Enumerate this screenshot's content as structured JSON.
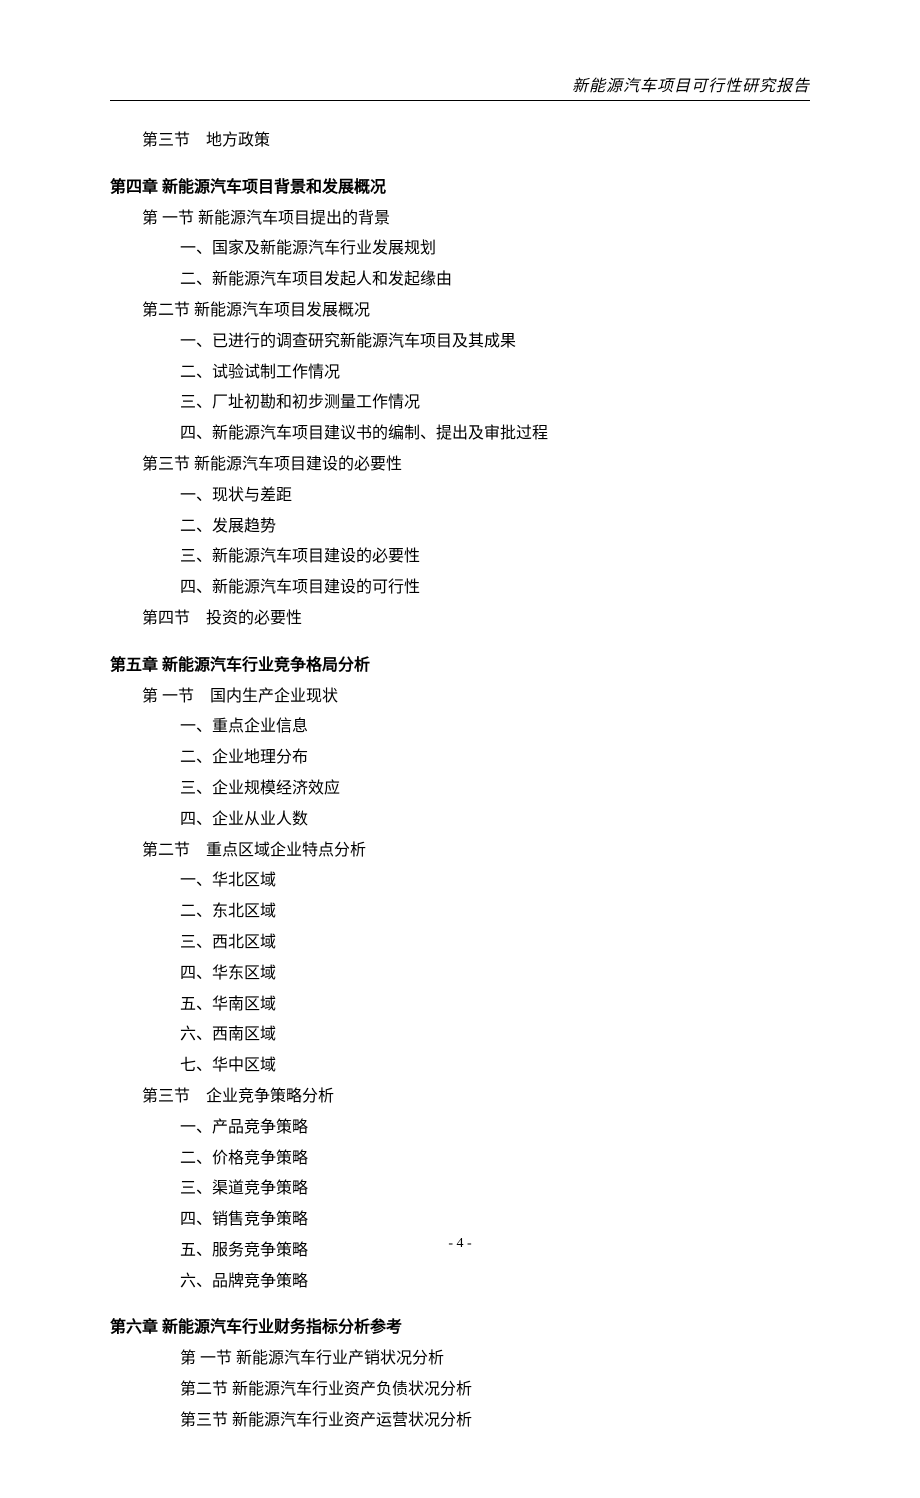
{
  "header": {
    "title": "新能源汽车项目可行性研究报告"
  },
  "footer": {
    "pageNumber": "- 4 -"
  },
  "typography": {
    "body_font": "SimSun",
    "body_size_pt": 12,
    "line_height": 1.8,
    "header_italic": true,
    "chapter_bold": true,
    "text_color": "#000000",
    "background_color": "#ffffff"
  },
  "lines": [
    {
      "text": "第三节　地方政策",
      "indent": 1,
      "type": "section"
    },
    {
      "text": "第四章  新能源汽车项目背景和发展概况",
      "indent": 0,
      "type": "chapter"
    },
    {
      "text": "第 一节  新能源汽车项目提出的背景",
      "indent": 1,
      "type": "section"
    },
    {
      "text": "一、国家及新能源汽车行业发展规划",
      "indent": 2,
      "type": "item"
    },
    {
      "text": "二、新能源汽车项目发起人和发起缘由",
      "indent": 2,
      "type": "item"
    },
    {
      "text": "第二节  新能源汽车项目发展概况",
      "indent": 1,
      "type": "section"
    },
    {
      "text": "一、已进行的调查研究新能源汽车项目及其成果",
      "indent": 2,
      "type": "item"
    },
    {
      "text": "二、试验试制工作情况",
      "indent": 2,
      "type": "item"
    },
    {
      "text": "三、厂址初勘和初步测量工作情况",
      "indent": 2,
      "type": "item"
    },
    {
      "text": "四、新能源汽车项目建议书的编制、提出及审批过程",
      "indent": 2,
      "type": "item"
    },
    {
      "text": "第三节  新能源汽车项目建设的必要性",
      "indent": 1,
      "type": "section"
    },
    {
      "text": "一、现状与差距",
      "indent": 2,
      "type": "item"
    },
    {
      "text": "二、发展趋势",
      "indent": 2,
      "type": "item"
    },
    {
      "text": "三、新能源汽车项目建设的必要性",
      "indent": 2,
      "type": "item"
    },
    {
      "text": "四、新能源汽车项目建设的可行性",
      "indent": 2,
      "type": "item"
    },
    {
      "text": "第四节　投资的必要性",
      "indent": 1,
      "type": "section"
    },
    {
      "text": "第五章  新能源汽车行业竞争格局分析",
      "indent": 0,
      "type": "chapter"
    },
    {
      "text": "第 一节　国内生产企业现状",
      "indent": 1,
      "type": "section"
    },
    {
      "text": "一、重点企业信息",
      "indent": 2,
      "type": "item"
    },
    {
      "text": "二、企业地理分布",
      "indent": 2,
      "type": "item"
    },
    {
      "text": "三、企业规模经济效应",
      "indent": 2,
      "type": "item"
    },
    {
      "text": "四、企业从业人数",
      "indent": 2,
      "type": "item"
    },
    {
      "text": "第二节　重点区域企业特点分析",
      "indent": 1,
      "type": "section"
    },
    {
      "text": "一、华北区域",
      "indent": 2,
      "type": "item"
    },
    {
      "text": "二、东北区域",
      "indent": 2,
      "type": "item"
    },
    {
      "text": "三、西北区域",
      "indent": 2,
      "type": "item"
    },
    {
      "text": "四、华东区域",
      "indent": 2,
      "type": "item"
    },
    {
      "text": "五、华南区域",
      "indent": 2,
      "type": "item"
    },
    {
      "text": "六、西南区域",
      "indent": 2,
      "type": "item"
    },
    {
      "text": "七、华中区域",
      "indent": 2,
      "type": "item"
    },
    {
      "text": "第三节　企业竞争策略分析",
      "indent": 1,
      "type": "section"
    },
    {
      "text": "一、产品竞争策略",
      "indent": 2,
      "type": "item"
    },
    {
      "text": "二、价格竞争策略",
      "indent": 2,
      "type": "item"
    },
    {
      "text": "三、渠道竞争策略",
      "indent": 2,
      "type": "item"
    },
    {
      "text": "四、销售竞争策略",
      "indent": 2,
      "type": "item"
    },
    {
      "text": "五、服务竞争策略",
      "indent": 2,
      "type": "item"
    },
    {
      "text": "六、品牌竞争策略",
      "indent": 2,
      "type": "item"
    },
    {
      "text": "第六章  新能源汽车行业财务指标分析参考",
      "indent": 0,
      "type": "chapter"
    },
    {
      "text": "第 一节  新能源汽车行业产销状况分析",
      "indent": 2,
      "type": "section"
    },
    {
      "text": "第二节  新能源汽车行业资产负债状况分析",
      "indent": 2,
      "type": "section"
    },
    {
      "text": "第三节  新能源汽车行业资产运营状况分析",
      "indent": 2,
      "type": "section"
    }
  ]
}
